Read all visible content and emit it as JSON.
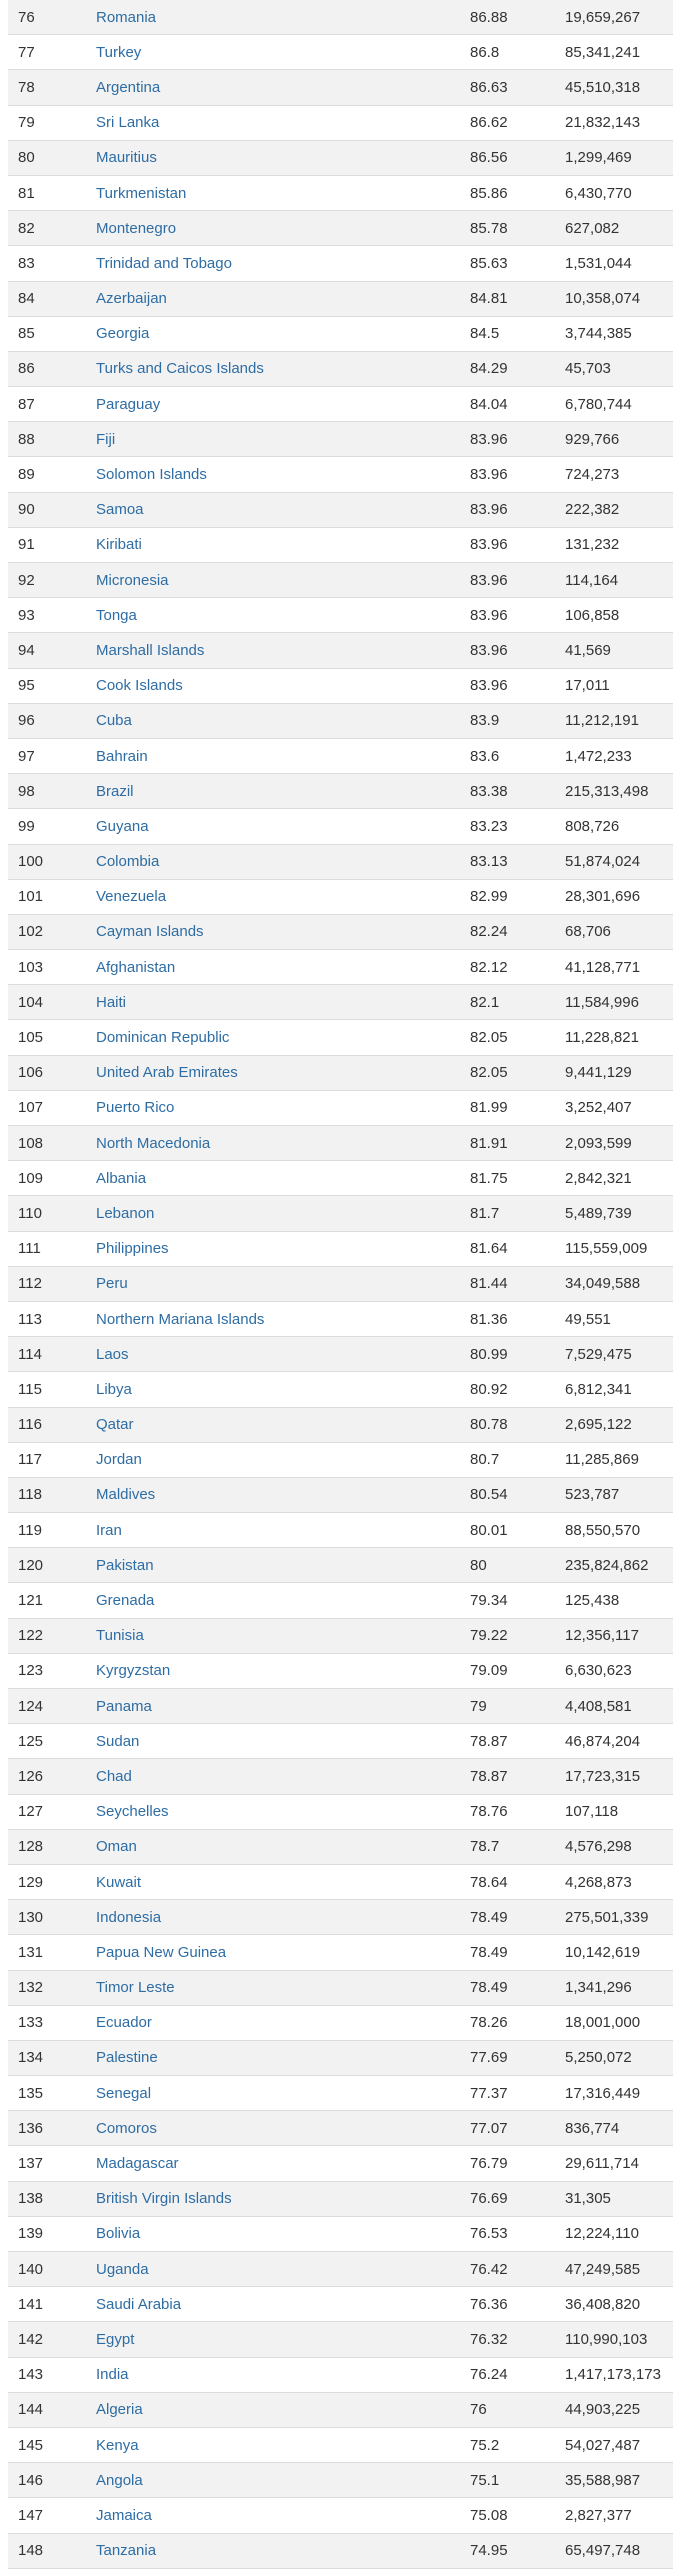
{
  "table": {
    "rows": [
      {
        "rank": "76",
        "country": "Romania",
        "score": "86.88",
        "population": "19,659,267"
      },
      {
        "rank": "77",
        "country": "Turkey",
        "score": "86.8",
        "population": "85,341,241"
      },
      {
        "rank": "78",
        "country": "Argentina",
        "score": "86.63",
        "population": "45,510,318"
      },
      {
        "rank": "79",
        "country": "Sri Lanka",
        "score": "86.62",
        "population": "21,832,143"
      },
      {
        "rank": "80",
        "country": "Mauritius",
        "score": "86.56",
        "population": "1,299,469"
      },
      {
        "rank": "81",
        "country": "Turkmenistan",
        "score": "85.86",
        "population": "6,430,770"
      },
      {
        "rank": "82",
        "country": "Montenegro",
        "score": "85.78",
        "population": "627,082"
      },
      {
        "rank": "83",
        "country": "Trinidad and Tobago",
        "score": "85.63",
        "population": "1,531,044"
      },
      {
        "rank": "84",
        "country": "Azerbaijan",
        "score": "84.81",
        "population": "10,358,074"
      },
      {
        "rank": "85",
        "country": "Georgia",
        "score": "84.5",
        "population": "3,744,385"
      },
      {
        "rank": "86",
        "country": "Turks and Caicos Islands",
        "score": "84.29",
        "population": "45,703"
      },
      {
        "rank": "87",
        "country": "Paraguay",
        "score": "84.04",
        "population": "6,780,744"
      },
      {
        "rank": "88",
        "country": "Fiji",
        "score": "83.96",
        "population": "929,766"
      },
      {
        "rank": "89",
        "country": "Solomon Islands",
        "score": "83.96",
        "population": "724,273"
      },
      {
        "rank": "90",
        "country": "Samoa",
        "score": "83.96",
        "population": "222,382"
      },
      {
        "rank": "91",
        "country": "Kiribati",
        "score": "83.96",
        "population": "131,232"
      },
      {
        "rank": "92",
        "country": "Micronesia",
        "score": "83.96",
        "population": "114,164"
      },
      {
        "rank": "93",
        "country": "Tonga",
        "score": "83.96",
        "population": "106,858"
      },
      {
        "rank": "94",
        "country": "Marshall Islands",
        "score": "83.96",
        "population": "41,569"
      },
      {
        "rank": "95",
        "country": "Cook Islands",
        "score": "83.96",
        "population": "17,011"
      },
      {
        "rank": "96",
        "country": "Cuba",
        "score": "83.9",
        "population": "11,212,191"
      },
      {
        "rank": "97",
        "country": "Bahrain",
        "score": "83.6",
        "population": "1,472,233"
      },
      {
        "rank": "98",
        "country": "Brazil",
        "score": "83.38",
        "population": "215,313,498"
      },
      {
        "rank": "99",
        "country": "Guyana",
        "score": "83.23",
        "population": "808,726"
      },
      {
        "rank": "100",
        "country": "Colombia",
        "score": "83.13",
        "population": "51,874,024"
      },
      {
        "rank": "101",
        "country": "Venezuela",
        "score": "82.99",
        "population": "28,301,696"
      },
      {
        "rank": "102",
        "country": "Cayman Islands",
        "score": "82.24",
        "population": "68,706"
      },
      {
        "rank": "103",
        "country": "Afghanistan",
        "score": "82.12",
        "population": "41,128,771"
      },
      {
        "rank": "104",
        "country": "Haiti",
        "score": "82.1",
        "population": "11,584,996"
      },
      {
        "rank": "105",
        "country": "Dominican Republic",
        "score": "82.05",
        "population": "11,228,821"
      },
      {
        "rank": "106",
        "country": "United Arab Emirates",
        "score": "82.05",
        "population": "9,441,129"
      },
      {
        "rank": "107",
        "country": "Puerto Rico",
        "score": "81.99",
        "population": "3,252,407"
      },
      {
        "rank": "108",
        "country": "North Macedonia",
        "score": "81.91",
        "population": "2,093,599"
      },
      {
        "rank": "109",
        "country": "Albania",
        "score": "81.75",
        "population": "2,842,321"
      },
      {
        "rank": "110",
        "country": "Lebanon",
        "score": "81.7",
        "population": "5,489,739"
      },
      {
        "rank": "111",
        "country": "Philippines",
        "score": "81.64",
        "population": "115,559,009"
      },
      {
        "rank": "112",
        "country": "Peru",
        "score": "81.44",
        "population": "34,049,588"
      },
      {
        "rank": "113",
        "country": "Northern Mariana Islands",
        "score": "81.36",
        "population": "49,551"
      },
      {
        "rank": "114",
        "country": "Laos",
        "score": "80.99",
        "population": "7,529,475"
      },
      {
        "rank": "115",
        "country": "Libya",
        "score": "80.92",
        "population": "6,812,341"
      },
      {
        "rank": "116",
        "country": "Qatar",
        "score": "80.78",
        "population": "2,695,122"
      },
      {
        "rank": "117",
        "country": "Jordan",
        "score": "80.7",
        "population": "11,285,869"
      },
      {
        "rank": "118",
        "country": "Maldives",
        "score": "80.54",
        "population": "523,787"
      },
      {
        "rank": "119",
        "country": "Iran",
        "score": "80.01",
        "population": "88,550,570"
      },
      {
        "rank": "120",
        "country": "Pakistan",
        "score": "80",
        "population": "235,824,862"
      },
      {
        "rank": "121",
        "country": "Grenada",
        "score": "79.34",
        "population": "125,438"
      },
      {
        "rank": "122",
        "country": "Tunisia",
        "score": "79.22",
        "population": "12,356,117"
      },
      {
        "rank": "123",
        "country": "Kyrgyzstan",
        "score": "79.09",
        "population": "6,630,623"
      },
      {
        "rank": "124",
        "country": "Panama",
        "score": "79",
        "population": "4,408,581"
      },
      {
        "rank": "125",
        "country": "Sudan",
        "score": "78.87",
        "population": "46,874,204"
      },
      {
        "rank": "126",
        "country": "Chad",
        "score": "78.87",
        "population": "17,723,315"
      },
      {
        "rank": "127",
        "country": "Seychelles",
        "score": "78.76",
        "population": "107,118"
      },
      {
        "rank": "128",
        "country": "Oman",
        "score": "78.7",
        "population": "4,576,298"
      },
      {
        "rank": "129",
        "country": "Kuwait",
        "score": "78.64",
        "population": "4,268,873"
      },
      {
        "rank": "130",
        "country": "Indonesia",
        "score": "78.49",
        "population": "275,501,339"
      },
      {
        "rank": "131",
        "country": "Papua New Guinea",
        "score": "78.49",
        "population": "10,142,619"
      },
      {
        "rank": "132",
        "country": "Timor Leste",
        "score": "78.49",
        "population": "1,341,296"
      },
      {
        "rank": "133",
        "country": "Ecuador",
        "score": "78.26",
        "population": "18,001,000"
      },
      {
        "rank": "134",
        "country": "Palestine",
        "score": "77.69",
        "population": "5,250,072"
      },
      {
        "rank": "135",
        "country": "Senegal",
        "score": "77.37",
        "population": "17,316,449"
      },
      {
        "rank": "136",
        "country": "Comoros",
        "score": "77.07",
        "population": "836,774"
      },
      {
        "rank": "137",
        "country": "Madagascar",
        "score": "76.79",
        "population": "29,611,714"
      },
      {
        "rank": "138",
        "country": "British Virgin Islands",
        "score": "76.69",
        "population": "31,305"
      },
      {
        "rank": "139",
        "country": "Bolivia",
        "score": "76.53",
        "population": "12,224,110"
      },
      {
        "rank": "140",
        "country": "Uganda",
        "score": "76.42",
        "population": "47,249,585"
      },
      {
        "rank": "141",
        "country": "Saudi Arabia",
        "score": "76.36",
        "population": "36,408,820"
      },
      {
        "rank": "142",
        "country": "Egypt",
        "score": "76.32",
        "population": "110,990,103"
      },
      {
        "rank": "143",
        "country": "India",
        "score": "76.24",
        "population": "1,417,173,173"
      },
      {
        "rank": "144",
        "country": "Algeria",
        "score": "76",
        "population": "44,903,225"
      },
      {
        "rank": "145",
        "country": "Kenya",
        "score": "75.2",
        "population": "54,027,487"
      },
      {
        "rank": "146",
        "country": "Angola",
        "score": "75.1",
        "population": "35,588,987"
      },
      {
        "rank": "147",
        "country": "Jamaica",
        "score": "75.08",
        "population": "2,827,377"
      },
      {
        "rank": "148",
        "country": "Tanzania",
        "score": "74.95",
        "population": "65,497,748"
      }
    ]
  },
  "colors": {
    "link": "#2e6da4",
    "text": "#333333",
    "row_alt": "#f2f2f2",
    "border": "#dcdcdc"
  }
}
